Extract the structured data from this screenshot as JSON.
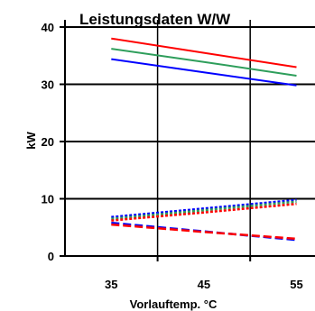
{
  "chart_data": {
    "type": "line",
    "title": "Leistungsdaten W/W",
    "xlabel": "Vorlauftemp. °C",
    "ylabel": "kW",
    "x": [
      35,
      45,
      55
    ],
    "xlim": [
      30,
      57
    ],
    "ylim": [
      0,
      40
    ],
    "x_ticks": [
      35,
      45,
      55
    ],
    "y_ticks": [
      0,
      10,
      20,
      30,
      40
    ],
    "grid": "horizontal",
    "series": [
      {
        "color": "#ff0000",
        "dash": "solid",
        "values": [
          38,
          35.5,
          33
        ]
      },
      {
        "color": "#2e9e5b",
        "dash": "solid",
        "values": [
          36.2,
          33.9,
          31.5
        ]
      },
      {
        "color": "#0000ff",
        "dash": "solid",
        "values": [
          34.4,
          32.1,
          29.8
        ]
      },
      {
        "color": "#0000ff",
        "dash": "dotted",
        "values": [
          6.8,
          8.3,
          9.8
        ]
      },
      {
        "color": "#2e9e5b",
        "dash": "dotted",
        "values": [
          6.5,
          8.0,
          9.5
        ]
      },
      {
        "color": "#ff0000",
        "dash": "dotted",
        "values": [
          6.2,
          7.6,
          9.1
        ]
      },
      {
        "color": "#0000ff",
        "dash": "dashed",
        "values": [
          5.8,
          4.3,
          2.8
        ]
      },
      {
        "color": "#ff0000",
        "dash": "dashed",
        "values": [
          5.5,
          4.2,
          3.0
        ]
      }
    ]
  }
}
